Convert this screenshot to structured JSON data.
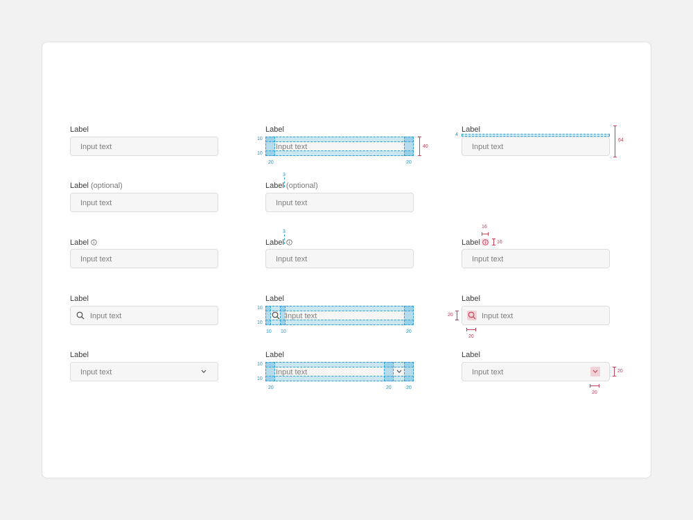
{
  "label": "Label",
  "label_optional": "(optional)",
  "placeholder": "Input text",
  "colors": {
    "spacing_blue": "#2a9fd0",
    "size_red": "#c43d55",
    "field_bg": "#f6f6f6",
    "field_border": "#dcdcdc"
  },
  "spacing": {
    "v10": "10",
    "h20": "20",
    "h10": "10",
    "gap3": "3",
    "top4": "4",
    "height40": "40",
    "height64": "64",
    "icon16": "16",
    "icon20": "20"
  },
  "icons": [
    "info-icon",
    "search-icon",
    "chevron-down-icon"
  ]
}
